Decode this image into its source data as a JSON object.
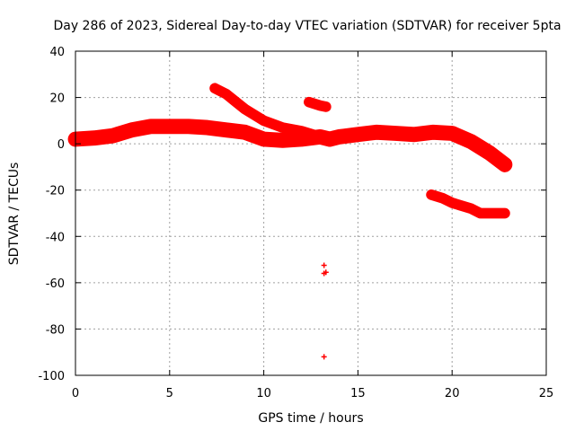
{
  "chart_data": {
    "type": "scatter",
    "title": "Day 286 of 2023, Sidereal Day-to-day VTEC variation (SDTVAR) for receiver 5pta",
    "xlabel": "GPS time / hours",
    "ylabel": "SDTVAR / TECUs",
    "xlim": [
      0,
      25
    ],
    "ylim": [
      -100,
      40
    ],
    "x_ticks": [
      0,
      5,
      10,
      15,
      20,
      25
    ],
    "y_ticks": [
      -100,
      -80,
      -60,
      -40,
      -20,
      0,
      20,
      40
    ],
    "x_tick_labels": [
      "0",
      "5",
      "10",
      "15",
      "20",
      "25"
    ],
    "y_tick_labels": [
      "-100",
      "-80",
      "-60",
      "-40",
      "-20",
      "0",
      "20",
      "40"
    ],
    "grid": true,
    "marker": "plus",
    "color": "#ff0000",
    "series": [
      {
        "name": "main-band",
        "thickness": 2.5,
        "points": [
          [
            0,
            2
          ],
          [
            1,
            2.5
          ],
          [
            2,
            3.5
          ],
          [
            3,
            6
          ],
          [
            4,
            7.5
          ],
          [
            5,
            7.5
          ],
          [
            6,
            7.5
          ],
          [
            7,
            7
          ],
          [
            8,
            6
          ],
          [
            9,
            5
          ],
          [
            10,
            2
          ],
          [
            11,
            1.5
          ],
          [
            12,
            2
          ],
          [
            13,
            3
          ],
          [
            13.5,
            2
          ],
          [
            14,
            3
          ],
          [
            15,
            4
          ],
          [
            16,
            5
          ],
          [
            17,
            4.5
          ],
          [
            18,
            4
          ],
          [
            19,
            5
          ],
          [
            20,
            4.5
          ],
          [
            21,
            1
          ],
          [
            22,
            -4
          ],
          [
            22.8,
            -9
          ]
        ]
      },
      {
        "name": "upper-branch",
        "thickness": 1.5,
        "points": [
          [
            7.4,
            24
          ],
          [
            8,
            21.5
          ],
          [
            9,
            15
          ],
          [
            10,
            10
          ],
          [
            11,
            7
          ],
          [
            12,
            5.5
          ],
          [
            13,
            3
          ]
        ]
      },
      {
        "name": "upper-short-segment",
        "thickness": 1.5,
        "points": [
          [
            12.4,
            18
          ],
          [
            13,
            16.5
          ],
          [
            13.3,
            16
          ]
        ]
      },
      {
        "name": "lower-branch",
        "thickness": 1.5,
        "points": [
          [
            18.9,
            -22
          ],
          [
            19.5,
            -23.5
          ],
          [
            20,
            -25.5
          ],
          [
            21,
            -28
          ],
          [
            21.5,
            -30
          ],
          [
            22,
            -30
          ],
          [
            22.8,
            -30
          ]
        ]
      },
      {
        "name": "right-tail",
        "thickness": 1.5,
        "points": [
          [
            21.6,
            -3
          ],
          [
            22,
            -4.5
          ],
          [
            22.5,
            -7
          ],
          [
            22.8,
            -10
          ]
        ]
      }
    ],
    "isolated_points": [
      [
        13.2,
        -52.5
      ],
      [
        13.2,
        -56
      ],
      [
        13.3,
        -55.5
      ],
      [
        13.2,
        -92
      ]
    ]
  }
}
